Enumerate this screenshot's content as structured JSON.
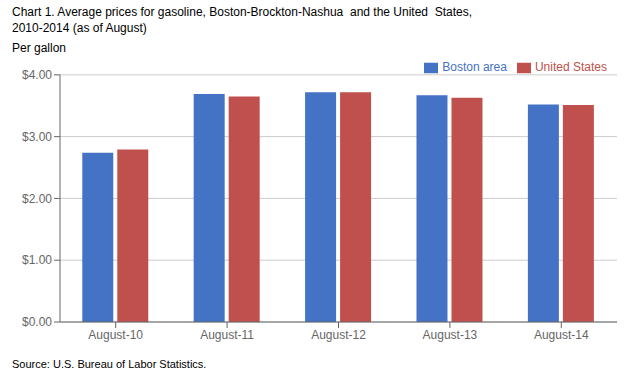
{
  "chart_data": {
    "type": "bar",
    "title": "Chart 1. Average prices for gasoline, Boston-Brockton-Nashua  and the United  States,\n2010-2014 (as of August)",
    "y_label": "Per gallon",
    "annotations": [
      "Source: U.S. Bureau of Labor Statistics."
    ],
    "categories": [
      "August-10",
      "August-11",
      "August-12",
      "August-13",
      "August-14"
    ],
    "series": [
      {
        "name": "Boston area",
        "color": "#4472C4",
        "values": [
          2.74,
          3.69,
          3.72,
          3.67,
          3.52
        ]
      },
      {
        "name": "United States",
        "color": "#C0504D",
        "values": [
          2.79,
          3.65,
          3.72,
          3.63,
          3.51
        ]
      }
    ],
    "ylim": [
      0,
      4.0
    ],
    "yticks": [
      {
        "value": 0,
        "label": "$0.00"
      },
      {
        "value": 1,
        "label": "$1.00"
      },
      {
        "value": 2,
        "label": "$2.00"
      },
      {
        "value": 3,
        "label": "$3.00"
      },
      {
        "value": 4,
        "label": "$4.00"
      }
    ],
    "grid": true,
    "legend": "upper right"
  }
}
